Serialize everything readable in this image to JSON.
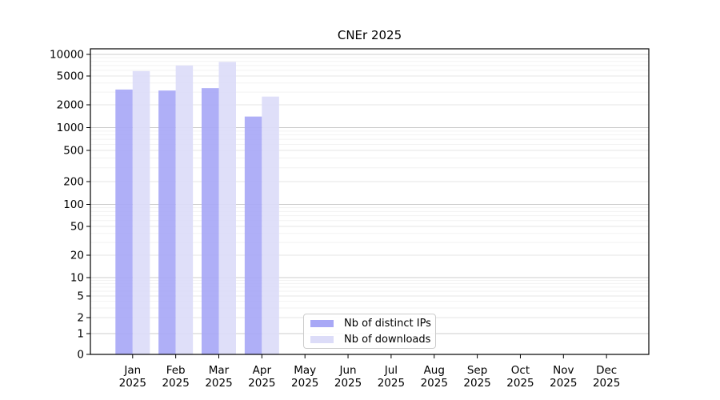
{
  "chart_data": {
    "type": "bar",
    "title": "CNEr 2025",
    "yscale": "symlog",
    "grid": true,
    "legend_position": "inside lower-center-left",
    "xlabel": "",
    "ylabel": "",
    "ylim": [
      0,
      12000
    ],
    "y_ticks": [
      0,
      1,
      2,
      5,
      10,
      20,
      50,
      100,
      200,
      500,
      1000,
      2000,
      5000,
      10000
    ],
    "categories": [
      "Jan",
      "Feb",
      "Mar",
      "Apr",
      "May",
      "Jun",
      "Jul",
      "Aug",
      "Sep",
      "Oct",
      "Nov",
      "Dec"
    ],
    "x_sublabel": "2025",
    "series": [
      {
        "name": "Nb of distinct IPs",
        "color": "#a8a8f6",
        "values": [
          3250,
          3150,
          3400,
          1400,
          null,
          null,
          null,
          null,
          null,
          null,
          null,
          null
        ]
      },
      {
        "name": "Nb of downloads",
        "color": "#dcdcf8",
        "values": [
          5850,
          7000,
          7850,
          2600,
          null,
          null,
          null,
          null,
          null,
          null,
          null,
          null
        ]
      }
    ]
  }
}
